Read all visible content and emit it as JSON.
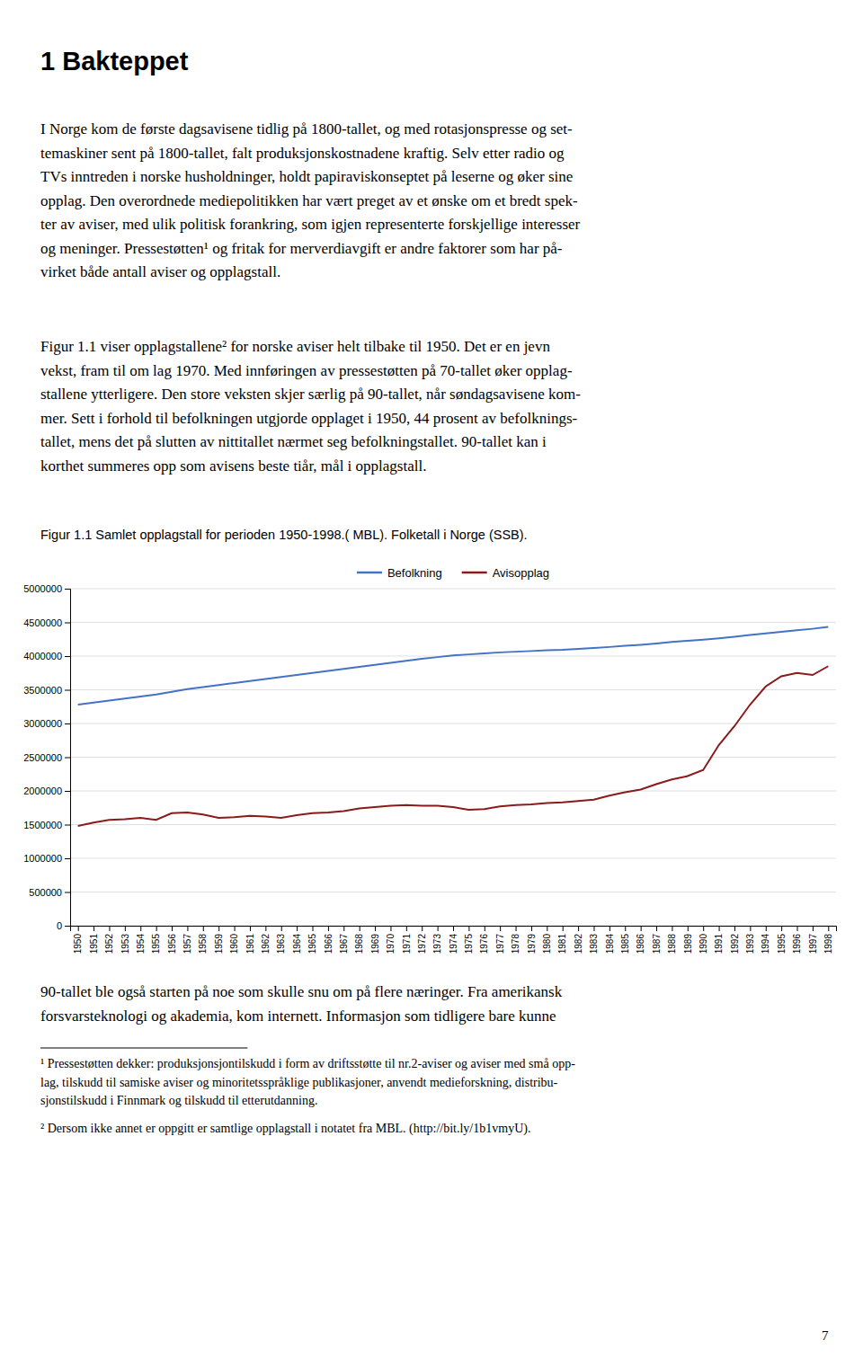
{
  "page": {
    "heading": "1 Bakteppet",
    "paragraphs": [
      [
        "I Norge kom de første dagsavisene tidlig på 1800-tallet, og med rotasjonspresse og set-",
        "temaskiner sent på 1800-tallet, falt produksjonskostnadene kraftig. Selv etter radio og",
        "TVs inntreden i norske husholdninger, holdt papiraviskonseptet på leserne og øker sine",
        "opplag. Den overordnede mediepolitikken har vært preget av et ønske om et bredt spek-",
        "ter av aviser, med ulik politisk forankring, som igjen representerte forskjellige interesser",
        "og meninger. Pressestøtten¹ og fritak for merverdiavgift er andre faktorer som har på-",
        "virket både antall aviser og opplagstall."
      ],
      [
        "Figur 1.1 viser opplagstallene² for norske aviser helt tilbake til 1950. Det er en jevn",
        "vekst, fram til om lag 1970. Med innføringen av pressestøtten på 70-tallet øker opplag-",
        "stallene ytterligere. Den store veksten skjer særlig på 90-tallet, når søndagsavisene kom-",
        "mer. Sett i forhold til befolkningen utgjorde opplaget i 1950, 44 prosent av befolknings-",
        "tallet, mens det på slutten av nittitallet nærmet seg befolkningstallet. 90-tallet kan i",
        "korthet summeres opp som avisens beste tiår, mål i opplagstall."
      ],
      [
        "90-tallet ble også starten på noe som skulle snu om på flere næringer. Fra amerikansk",
        "forsvarsteknologi og akademia, kom internett. Informasjon som tidligere bare kunne"
      ]
    ],
    "footnotes": [
      [
        "¹ Pressestøtten dekker: produksjonsjontilskudd i form av driftsstøtte til nr.2-aviser og aviser med små opp-",
        "lag, tilskudd til samiske aviser og minoritetsspråklige publikasjoner, anvendt medieforskning, distribu-",
        "sjonstilskudd i Finnmark og tilskudd til etterutdanning."
      ],
      [
        "² Dersom ikke annet er oppgitt er samtlige opplagstall i notatet fra MBL. (http://bit.ly/1b1vmyU)."
      ]
    ],
    "page_number": "7"
  },
  "chart_data": {
    "type": "line",
    "title": "Figur 1.1 Samlet opplagstall for perioden 1950-1998.( MBL). Folketall i Norge (SSB).",
    "x": [
      1950,
      1951,
      1952,
      1953,
      1954,
      1955,
      1956,
      1957,
      1958,
      1959,
      1960,
      1961,
      1962,
      1963,
      1964,
      1965,
      1966,
      1967,
      1968,
      1969,
      1970,
      1971,
      1972,
      1973,
      1974,
      1975,
      1976,
      1977,
      1978,
      1979,
      1980,
      1981,
      1982,
      1983,
      1984,
      1985,
      1986,
      1987,
      1988,
      1989,
      1990,
      1991,
      1992,
      1993,
      1994,
      1995,
      1996,
      1997,
      1998
    ],
    "series": [
      {
        "name": "Befolkning",
        "color": "#4472C4",
        "values": [
          3280000,
          3310000,
          3340000,
          3370000,
          3400000,
          3430000,
          3470000,
          3510000,
          3540000,
          3570000,
          3600000,
          3630000,
          3660000,
          3690000,
          3720000,
          3750000,
          3780000,
          3810000,
          3840000,
          3870000,
          3900000,
          3930000,
          3960000,
          3985000,
          4010000,
          4025000,
          4040000,
          4055000,
          4065000,
          4075000,
          4086000,
          4092000,
          4107000,
          4120000,
          4135000,
          4152000,
          4167000,
          4187000,
          4210000,
          4227000,
          4242000,
          4262000,
          4287000,
          4312000,
          4337000,
          4360000,
          4383000,
          4405000,
          4432000
        ]
      },
      {
        "name": "Avisopplag",
        "color": "#8B1A1A",
        "values": [
          1480000,
          1530000,
          1570000,
          1580000,
          1600000,
          1570000,
          1670000,
          1680000,
          1650000,
          1600000,
          1610000,
          1630000,
          1620000,
          1600000,
          1640000,
          1670000,
          1680000,
          1700000,
          1740000,
          1760000,
          1780000,
          1790000,
          1780000,
          1780000,
          1760000,
          1720000,
          1730000,
          1770000,
          1790000,
          1800000,
          1820000,
          1830000,
          1850000,
          1870000,
          1930000,
          1980000,
          2020000,
          2100000,
          2170000,
          2220000,
          2310000,
          2680000,
          2960000,
          3280000,
          3550000,
          3700000,
          3750000,
          3720000,
          3850000
        ]
      }
    ],
    "xlim": [
      1949.5,
      1998.5
    ],
    "xticks": [
      1950,
      1951,
      1952,
      1953,
      1954,
      1955,
      1956,
      1957,
      1958,
      1959,
      1960,
      1961,
      1962,
      1963,
      1964,
      1965,
      1966,
      1967,
      1968,
      1969,
      1970,
      1971,
      1972,
      1973,
      1974,
      1975,
      1976,
      1977,
      1978,
      1979,
      1980,
      1981,
      1982,
      1983,
      1984,
      1985,
      1986,
      1987,
      1988,
      1989,
      1990,
      1991,
      1992,
      1993,
      1994,
      1995,
      1996,
      1997,
      1998
    ],
    "ylim": [
      0,
      5000000
    ],
    "yticks": [
      0,
      500000,
      1000000,
      1500000,
      2000000,
      2500000,
      3000000,
      3500000,
      4000000,
      4500000,
      5000000
    ],
    "grid": "y",
    "legend": "top"
  }
}
